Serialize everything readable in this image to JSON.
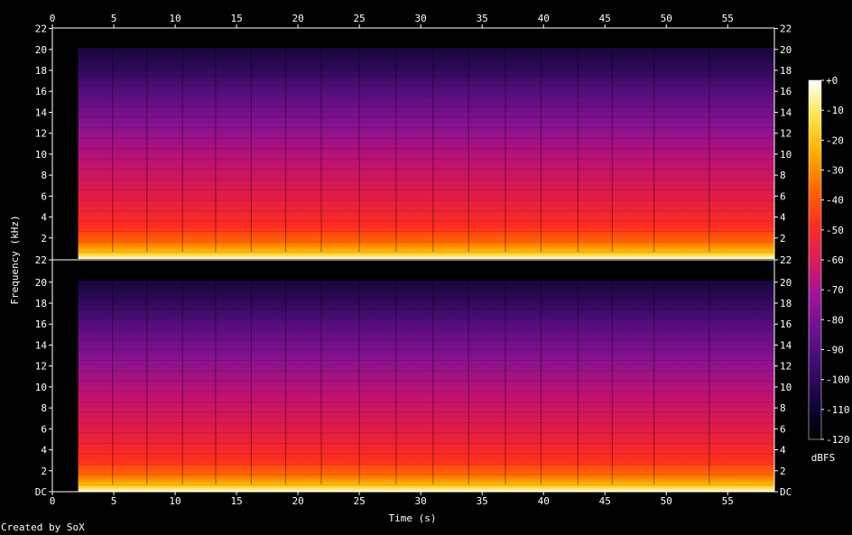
{
  "chart_data": {
    "type": "heatmap",
    "channels": 2,
    "xlabel": "Time (s)",
    "ylabel": "Frequency (kHz)",
    "xlim": [
      0,
      58.8
    ],
    "ylim": [
      0,
      22.05
    ],
    "x_ticks": [
      "0",
      "5",
      "10",
      "15",
      "20",
      "25",
      "30",
      "35",
      "40",
      "45",
      "50",
      "55"
    ],
    "y_ticks": [
      "DC",
      "2",
      "4",
      "6",
      "8",
      "10",
      "12",
      "14",
      "16",
      "18",
      "20",
      "22"
    ],
    "signal_start_s": 2.1,
    "colorbar": {
      "label": "dBFS",
      "range": [
        -120,
        0
      ],
      "ticks": [
        "+0",
        "-10",
        "-20",
        "-30",
        "-40",
        "-50",
        "-60",
        "-70",
        "-80",
        "-90",
        "-100",
        "-110",
        "-120"
      ]
    },
    "colors": {
      "background": "#000000",
      "text": "#ffffff",
      "scale": [
        "#000000",
        "#12043a",
        "#3a0c6e",
        "#6a1190",
        "#a0129a",
        "#d81e5e",
        "#ff2d1e",
        "#ff6a00",
        "#ffb000",
        "#ffe44a",
        "#ffffff"
      ]
    }
  },
  "credit": "Created by SoX"
}
